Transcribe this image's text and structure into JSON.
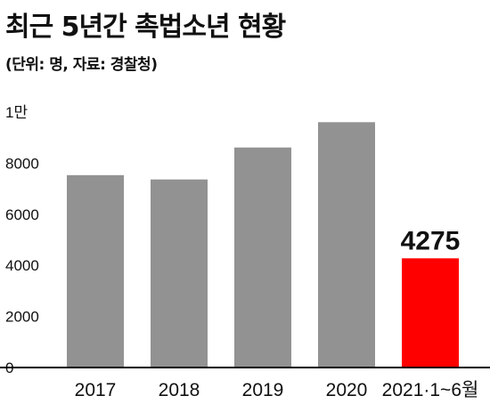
{
  "header": {
    "title": "최근 5년간 촉법소년 현황",
    "subtitle": "(단위: 명, 자료: 경찰청)"
  },
  "chart_data": {
    "type": "bar",
    "categories": [
      "2017",
      "2018",
      "2019",
      "2020",
      "2021·1~6월"
    ],
    "values": [
      7533,
      7364,
      8615,
      9606,
      4275
    ],
    "highlight_index": 4,
    "data_labels": [
      "",
      "",
      "",
      "",
      "4275"
    ],
    "y_ticks": [
      "0",
      "2000",
      "4000",
      "6000",
      "8000",
      "1만"
    ],
    "ylim": [
      0,
      10000
    ],
    "grid": false,
    "colors": {
      "bar": "#929292",
      "highlight": "#ff0000",
      "axis": "#000000"
    }
  }
}
